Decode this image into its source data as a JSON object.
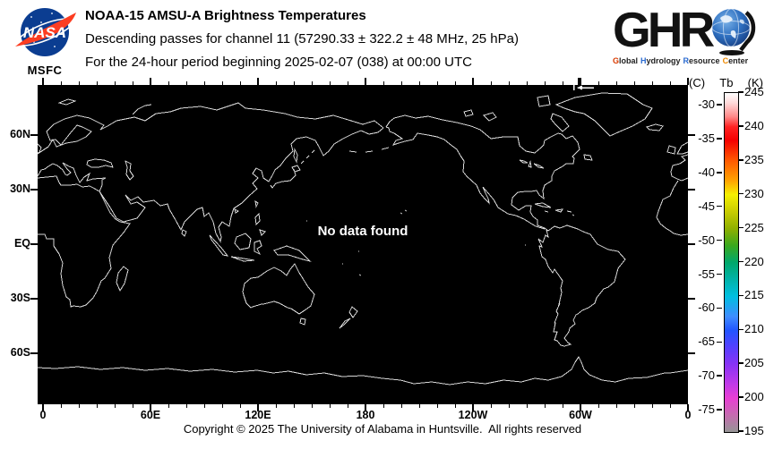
{
  "header": {
    "nasa": {
      "wordmark": "NASA",
      "center_label": "MSFC",
      "blue": "#0b3d91",
      "red": "#fc3d21"
    },
    "title_line1": "NOAA-15 AMSU-A Brightness Temperatures",
    "title_line2": "Descending passes for channel 11 (57290.33 ± 322.2 ± 48 MHz, 25 hPa)",
    "title_line3": "For the 24-hour period beginning 2025-02-07 (038) at 00:00 UTC",
    "ghrc": {
      "letters": "GHR",
      "letter_color": "#121212",
      "globe_blue": "#2e6fc0",
      "subtitle_words": [
        {
          "text": "Global",
          "color": "#d93a00"
        },
        {
          "text": "Hydrology",
          "color": "#2a6ad0"
        },
        {
          "text": "Resource",
          "color": "#2a6ad0"
        },
        {
          "text": "Center",
          "color": "#ee8a00"
        }
      ]
    }
  },
  "map": {
    "no_data_text": "No data found",
    "background": "#000000",
    "coastline_color": "#d8d8d8",
    "lat_ticks": [
      {
        "label": "60N",
        "deg": 60
      },
      {
        "label": "30N",
        "deg": 30
      },
      {
        "label": "EQ",
        "deg": 0
      },
      {
        "label": "30S",
        "deg": -30
      },
      {
        "label": "60S",
        "deg": -60
      }
    ],
    "lon_ticks": [
      {
        "label": "0",
        "deg": 0
      },
      {
        "label": "60E",
        "deg": 60
      },
      {
        "label": "120E",
        "deg": 120
      },
      {
        "label": "180",
        "deg": 180
      },
      {
        "label": "120W",
        "deg": 240
      },
      {
        "label": "60W",
        "deg": 300
      },
      {
        "label": "0",
        "deg": 360
      }
    ]
  },
  "colorbar": {
    "header": {
      "celsius": "(C)",
      "quantity": "Tb",
      "kelvin": "(K)"
    },
    "k_min": 195,
    "k_max": 245,
    "kelvin_ticks": [
      {
        "label": "245",
        "k": 245
      },
      {
        "label": "240",
        "k": 240
      },
      {
        "label": "235",
        "k": 235
      },
      {
        "label": "230",
        "k": 230
      },
      {
        "label": "225",
        "k": 225
      },
      {
        "label": "220",
        "k": 220
      },
      {
        "label": "215",
        "k": 215
      },
      {
        "label": "210",
        "k": 210
      },
      {
        "label": "205",
        "k": 205
      },
      {
        "label": "200",
        "k": 200
      },
      {
        "label": "195",
        "k": 195
      }
    ],
    "celsius_ticks": [
      {
        "label": "-30",
        "c": -30
      },
      {
        "label": "-35",
        "c": -35
      },
      {
        "label": "-40",
        "c": -40
      },
      {
        "label": "-45",
        "c": -45
      },
      {
        "label": "-50",
        "c": -50
      },
      {
        "label": "-55",
        "c": -55
      },
      {
        "label": "-60",
        "c": -60
      },
      {
        "label": "-65",
        "c": -65
      },
      {
        "label": "-70",
        "c": -70
      },
      {
        "label": "-75",
        "c": -75
      }
    ],
    "gradient_stops": [
      {
        "k": 245,
        "color": "#ffffff"
      },
      {
        "k": 243.5,
        "color": "#ffd8d8"
      },
      {
        "k": 241.5,
        "color": "#ff8888"
      },
      {
        "k": 240,
        "color": "#ff2222"
      },
      {
        "k": 238,
        "color": "#f50000"
      },
      {
        "k": 235,
        "color": "#ff5a00"
      },
      {
        "k": 232,
        "color": "#ffa500"
      },
      {
        "k": 230,
        "color": "#f5f000"
      },
      {
        "k": 227.5,
        "color": "#c8cc00"
      },
      {
        "k": 225,
        "color": "#8fb000"
      },
      {
        "k": 222.5,
        "color": "#3aa81e"
      },
      {
        "k": 220,
        "color": "#00a86b"
      },
      {
        "k": 217.5,
        "color": "#00b2a8"
      },
      {
        "k": 215,
        "color": "#00bfe0"
      },
      {
        "k": 212,
        "color": "#3f8cff"
      },
      {
        "k": 210,
        "color": "#2255ff"
      },
      {
        "k": 207.5,
        "color": "#5540ff"
      },
      {
        "k": 205,
        "color": "#8833f5"
      },
      {
        "k": 202,
        "color": "#c23ae8"
      },
      {
        "k": 200,
        "color": "#e83fd4"
      },
      {
        "k": 197.5,
        "color": "#c66bb0"
      },
      {
        "k": 195,
        "color": "#969696"
      }
    ]
  },
  "footer": {
    "copyright": "Copyright © 2025 The University of Alabama in Huntsville.  All rights reserved"
  }
}
